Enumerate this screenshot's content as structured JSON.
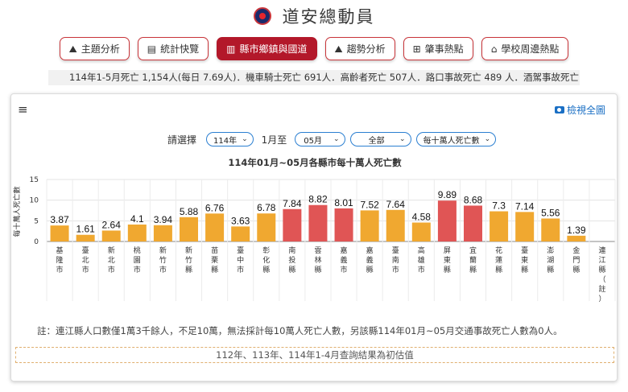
{
  "header": {
    "title": "道安總動員"
  },
  "nav": [
    {
      "icon": "area-chart-icon",
      "glyph": "⛰",
      "label": "主題分析",
      "active": false
    },
    {
      "icon": "newspaper-icon",
      "glyph": "▤",
      "label": "統計快覽",
      "active": false
    },
    {
      "icon": "bar-chart-icon",
      "glyph": "▥",
      "label": "縣市鄉鎮與國道",
      "active": true
    },
    {
      "icon": "trend-chart-icon",
      "glyph": "⛰",
      "label": "趨勢分析",
      "active": false
    },
    {
      "icon": "map-icon",
      "glyph": "⊞",
      "label": "肇事熱點",
      "active": false
    },
    {
      "icon": "school-icon",
      "glyph": "⌂",
      "label": "學校周邊熱點",
      "active": false
    }
  ],
  "ticker": {
    "text": "114年1-5月死亡 1,154人(每日 7.69人)．機車騎士死亡 691人．高齡者死亡 507人．路口事故死亡 489 人．酒駕事故死亡 54"
  },
  "panel": {
    "view_all": "檢視全圖",
    "filters": {
      "label": "請選擇",
      "year": "114年",
      "from_label": "1月至",
      "month": "05月",
      "scope": "全部",
      "metric": "每十萬人死亡數"
    },
    "note": "註：連江縣人口數僅1萬3千餘人，不足10萬，無法採計每10萬人死亡人數，另該縣114年01月~05月交通事故死亡人數為0人。",
    "footnote": "112年、113年、114年1-4月查詢結果為初估值"
  },
  "chart_data": {
    "type": "bar",
    "title": "114年01月~05月各縣市每十萬人死亡數",
    "ylabel": "每十萬人死亡數",
    "xlabel": "",
    "ylim": [
      0,
      15
    ],
    "yticks": [
      0,
      5,
      10,
      15
    ],
    "grid": true,
    "legend": "none",
    "colors": {
      "normal": "#f0a830",
      "high": "#e05555"
    },
    "categories": [
      "基隆市",
      "臺北市",
      "新北市",
      "桃園市",
      "新竹市",
      "新竹縣",
      "苗栗縣",
      "臺中市",
      "彰化縣",
      "南投縣",
      "雲林縣",
      "嘉義市",
      "嘉義縣",
      "臺南市",
      "高雄市",
      "屏東縣",
      "宜蘭縣",
      "花蓮縣",
      "臺東縣",
      "澎湖縣",
      "金門縣",
      "連江縣（註）"
    ],
    "values": [
      3.87,
      1.61,
      2.64,
      4.1,
      3.94,
      5.88,
      6.76,
      3.63,
      6.78,
      7.84,
      8.82,
      8.01,
      7.52,
      7.64,
      4.58,
      9.89,
      8.68,
      7.3,
      7.14,
      5.56,
      1.39,
      null
    ],
    "value_labels": [
      "3.87",
      "1.61",
      "2.64",
      "4.1",
      "3.94",
      "5.88",
      "6.76",
      "3.63",
      "6.78",
      "7.84",
      "8.82",
      "8.01",
      "7.52",
      "7.64",
      "4.58",
      "9.89",
      "8.68",
      "7.3",
      "7.14",
      "5.56",
      "1.39",
      ""
    ],
    "highlight": [
      false,
      false,
      false,
      false,
      false,
      false,
      false,
      false,
      false,
      true,
      true,
      true,
      false,
      false,
      false,
      true,
      true,
      false,
      false,
      false,
      false,
      false
    ]
  }
}
